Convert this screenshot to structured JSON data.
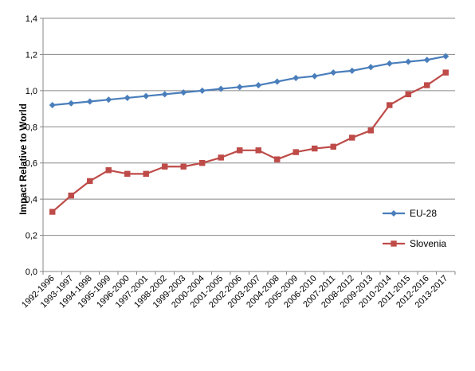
{
  "chart_data": {
    "type": "line",
    "title": "",
    "xlabel": "",
    "ylabel": "Impact Relative to World",
    "ylim": [
      0,
      1.4
    ],
    "yticks": [
      "0,0",
      "0,2",
      "0,4",
      "0,6",
      "0,8",
      "1,0",
      "1,2",
      "1,4"
    ],
    "ytick_values": [
      0,
      0.2,
      0.4,
      0.6,
      0.8,
      1.0,
      1.2,
      1.4
    ],
    "grid": true,
    "legend_position": "right",
    "categories": [
      "1992-1996",
      "1993-1997",
      "1994-1998",
      "1995-1999",
      "1996-2000",
      "1997-2001",
      "1998-2002",
      "1999-2003",
      "2000-2004",
      "2001-2005",
      "2002-2006",
      "2003-2007",
      "2004-2008",
      "2005-2009",
      "2006-2010",
      "2007-2011",
      "2008-2012",
      "2009-2013",
      "2010-2014",
      "2011-2015",
      "2012-2016",
      "2013-2017"
    ],
    "series": [
      {
        "name": "EU-28",
        "color": "#4a7ebb",
        "marker": "diamond",
        "values": [
          0.92,
          0.93,
          0.94,
          0.95,
          0.96,
          0.97,
          0.98,
          0.99,
          1.0,
          1.01,
          1.02,
          1.03,
          1.05,
          1.07,
          1.08,
          1.1,
          1.11,
          1.13,
          1.15,
          1.16,
          1.17,
          1.19
        ]
      },
      {
        "name": "Slovenia",
        "color": "#be4b48",
        "marker": "square",
        "values": [
          0.33,
          0.42,
          0.5,
          0.56,
          0.54,
          0.54,
          0.58,
          0.58,
          0.6,
          0.63,
          0.67,
          0.67,
          0.62,
          0.66,
          0.68,
          0.69,
          0.74,
          0.78,
          0.92,
          0.98,
          1.03,
          1.1
        ]
      }
    ]
  }
}
